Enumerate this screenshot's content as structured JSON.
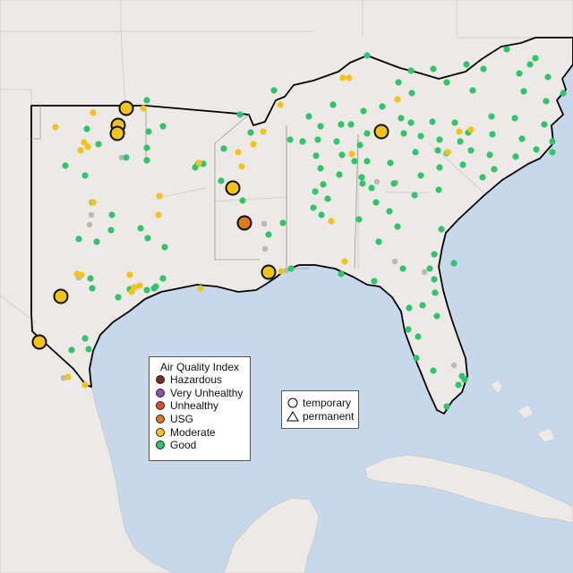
{
  "legend": {
    "title": "Air Quality Index",
    "categories": [
      {
        "label": "Hazardous",
        "color": "#7e2a1e"
      },
      {
        "label": "Very Unhealthy",
        "color": "#8f4fb5"
      },
      {
        "label": "Unhealthy",
        "color": "#e04a2c"
      },
      {
        "label": "USG",
        "color": "#e07a1c"
      },
      {
        "label": "Moderate",
        "color": "#f2c318"
      },
      {
        "label": "Good",
        "color": "#2fc56a"
      }
    ]
  },
  "shape_legend": {
    "temporary": "temporary",
    "permanent": "permanent"
  },
  "colors": {
    "water": "#c6d8ea",
    "land": "#ece9e6",
    "region_outline": "#000000",
    "inactive_station": "#b8b8b8"
  },
  "stations": {
    "good": [
      [
        410,
        62
      ],
      [
        459,
        79
      ],
      [
        521,
        72
      ],
      [
        566,
        55
      ],
      [
        598,
        65
      ],
      [
        592,
        72
      ],
      [
        540,
        77
      ],
      [
        484,
        77
      ],
      [
        499,
        92
      ],
      [
        528,
        101
      ],
      [
        585,
        102
      ],
      [
        610,
        113
      ],
      [
        629,
        104
      ],
      [
        612,
        86
      ],
      [
        580,
        82
      ],
      [
        445,
        92
      ],
      [
        460,
        104
      ],
      [
        427,
        119
      ],
      [
        406,
        124
      ],
      [
        372,
        117
      ],
      [
        345,
        130
      ],
      [
        358,
        141
      ],
      [
        381,
        139
      ],
      [
        392,
        139
      ],
      [
        448,
        132
      ],
      [
        459,
        137
      ],
      [
        483,
        136
      ],
      [
        508,
        137
      ],
      [
        549,
        130
      ],
      [
        575,
        132
      ],
      [
        608,
        139
      ],
      [
        617,
        158
      ],
      [
        583,
        155
      ],
      [
        550,
        150
      ],
      [
        523,
        148
      ],
      [
        514,
        158
      ],
      [
        491,
        156
      ],
      [
        470,
        152
      ],
      [
        451,
        149
      ],
      [
        410,
        149
      ],
      [
        402,
        162
      ],
      [
        376,
        158
      ],
      [
        355,
        156
      ],
      [
        338,
        158
      ],
      [
        324,
        156
      ],
      [
        382,
        173
      ],
      [
        353,
        174
      ],
      [
        358,
        188
      ],
      [
        379,
        195
      ],
      [
        410,
        180
      ],
      [
        436,
        182
      ],
      [
        464,
        170
      ],
      [
        489,
        168
      ],
      [
        499,
        171
      ],
      [
        526,
        168
      ],
      [
        547,
        173
      ],
      [
        576,
        175
      ],
      [
        599,
        167
      ],
      [
        617,
        170
      ],
      [
        552,
        189
      ],
      [
        539,
        198
      ],
      [
        517,
        184
      ],
      [
        491,
        187
      ],
      [
        470,
        196
      ],
      [
        490,
        212
      ],
      [
        463,
        218
      ],
      [
        440,
        205
      ],
      [
        415,
        210
      ],
      [
        404,
        198
      ],
      [
        361,
        206
      ],
      [
        352,
        214
      ],
      [
        366,
        222
      ],
      [
        350,
        232
      ],
      [
        359,
        240
      ],
      [
        401,
        245
      ],
      [
        435,
        236
      ],
      [
        423,
        270
      ],
      [
        493,
        256
      ],
      [
        485,
        284
      ],
      [
        480,
        300
      ],
      [
        485,
        312
      ],
      [
        507,
        294
      ],
      [
        486,
        327
      ],
      [
        488,
        353
      ],
      [
        472,
        341
      ],
      [
        457,
        344
      ],
      [
        456,
        368
      ],
      [
        467,
        376
      ],
      [
        465,
        400
      ],
      [
        484,
        414
      ],
      [
        516,
        420
      ],
      [
        519,
        424
      ],
      [
        512,
        430
      ],
      [
        499,
        454
      ],
      [
        396,
        180
      ],
      [
        405,
        205
      ],
      [
        420,
        226
      ],
      [
        444,
        253
      ],
      [
        381,
        306
      ],
      [
        418,
        314
      ],
      [
        450,
        300
      ],
      [
        316,
        249
      ],
      [
        300,
        262
      ],
      [
        325,
        300
      ],
      [
        306,
        101
      ],
      [
        268,
        128
      ],
      [
        280,
        148
      ],
      [
        250,
        166
      ],
      [
        227,
        183
      ],
      [
        218,
        187
      ],
      [
        247,
        202
      ],
      [
        271,
        224
      ],
      [
        164,
        112
      ],
      [
        182,
        141
      ],
      [
        166,
        147
      ],
      [
        164,
        165
      ],
      [
        164,
        179
      ],
      [
        141,
        176
      ],
      [
        221,
        183
      ],
      [
        97,
        144
      ],
      [
        110,
        161
      ],
      [
        73,
        185
      ],
      [
        95,
        196
      ],
      [
        103,
        226
      ],
      [
        125,
        240
      ],
      [
        124,
        257
      ],
      [
        108,
        270
      ],
      [
        88,
        267
      ],
      [
        157,
        255
      ],
      [
        165,
        266
      ],
      [
        184,
        276
      ],
      [
        182,
        311
      ],
      [
        174,
        320
      ],
      [
        164,
        324
      ],
      [
        132,
        332
      ],
      [
        101,
        311
      ],
      [
        103,
        322
      ],
      [
        95,
        378
      ],
      [
        99,
        390
      ],
      [
        80,
        391
      ],
      [
        172,
        322
      ],
      [
        145,
        323
      ]
    ],
    "moderate": [
      [
        383,
        87
      ],
      [
        390,
        87
      ],
      [
        444,
        111
      ],
      [
        313,
        117
      ],
      [
        393,
        172
      ],
      [
        294,
        147
      ],
      [
        283,
        161
      ],
      [
        266,
        170
      ],
      [
        270,
        186
      ],
      [
        222,
        182
      ],
      [
        160,
        121
      ],
      [
        104,
        126
      ],
      [
        137,
        148
      ],
      [
        62,
        142
      ],
      [
        94,
        159
      ],
      [
        98,
        164
      ],
      [
        90,
        168
      ],
      [
        104,
        226
      ],
      [
        178,
        219
      ],
      [
        177,
        240
      ],
      [
        145,
        307
      ],
      [
        150,
        321
      ],
      [
        147,
        326
      ],
      [
        156,
        319
      ],
      [
        224,
        322
      ],
      [
        91,
        307
      ],
      [
        86,
        306
      ],
      [
        76,
        421
      ],
      [
        95,
        430
      ],
      [
        370,
        247
      ],
      [
        385,
        292
      ],
      [
        314,
        303
      ],
      [
        513,
        147
      ],
      [
        526,
        145
      ],
      [
        500,
        170
      ]
    ],
    "inactive": [
      [
        136,
        176
      ],
      [
        102,
        240
      ],
      [
        100,
        251
      ],
      [
        295,
        250
      ],
      [
        296,
        278
      ],
      [
        441,
        292
      ],
      [
        474,
        304
      ],
      [
        421,
        203
      ],
      [
        442,
        204
      ],
      [
        507,
        408
      ],
      [
        88,
        310
      ],
      [
        71,
        422
      ],
      [
        320,
        302
      ]
    ],
    "moderate_large": [
      [
        141,
        121
      ],
      [
        132,
        140
      ],
      [
        131,
        149
      ],
      [
        260,
        210
      ],
      [
        426,
        147
      ],
      [
        68,
        331
      ],
      [
        300,
        304
      ],
      [
        44,
        382
      ]
    ],
    "usg_large": [
      [
        273,
        249
      ]
    ]
  }
}
